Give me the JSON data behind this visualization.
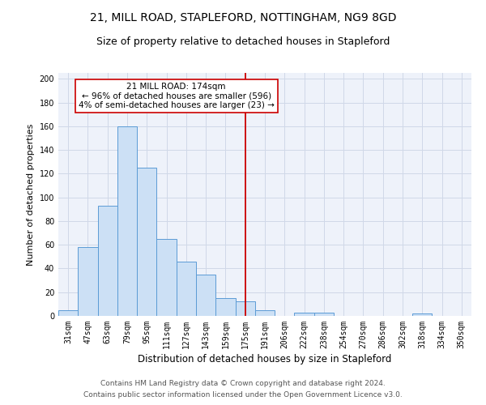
{
  "title": "21, MILL ROAD, STAPLEFORD, NOTTINGHAM, NG9 8GD",
  "subtitle": "Size of property relative to detached houses in Stapleford",
  "xlabel": "Distribution of detached houses by size in Stapleford",
  "ylabel": "Number of detached properties",
  "categories": [
    "31sqm",
    "47sqm",
    "63sqm",
    "79sqm",
    "95sqm",
    "111sqm",
    "127sqm",
    "143sqm",
    "159sqm",
    "175sqm",
    "191sqm",
    "206sqm",
    "222sqm",
    "238sqm",
    "254sqm",
    "270sqm",
    "286sqm",
    "302sqm",
    "318sqm",
    "334sqm",
    "350sqm"
  ],
  "values": [
    5,
    58,
    93,
    160,
    125,
    65,
    46,
    35,
    15,
    12,
    5,
    0,
    3,
    3,
    0,
    0,
    0,
    0,
    2,
    0,
    0
  ],
  "bar_color": "#cce0f5",
  "bar_edge_color": "#5b9bd5",
  "grid_color": "#d0d8e8",
  "bg_color": "#eef2fa",
  "vline_x": 9.0,
  "vline_color": "#cc0000",
  "annotation_text": "21 MILL ROAD: 174sqm\n← 96% of detached houses are smaller (596)\n4% of semi-detached houses are larger (23) →",
  "annotation_box_color": "#ffffff",
  "annotation_box_edge_color": "#cc0000",
  "footer_line1": "Contains HM Land Registry data © Crown copyright and database right 2024.",
  "footer_line2": "Contains public sector information licensed under the Open Government Licence v3.0.",
  "ylim": [
    0,
    205
  ],
  "yticks": [
    0,
    20,
    40,
    60,
    80,
    100,
    120,
    140,
    160,
    180,
    200
  ],
  "title_fontsize": 10,
  "subtitle_fontsize": 9,
  "xlabel_fontsize": 8.5,
  "ylabel_fontsize": 8,
  "tick_fontsize": 7,
  "footer_fontsize": 6.5,
  "annotation_fontsize": 7.5
}
